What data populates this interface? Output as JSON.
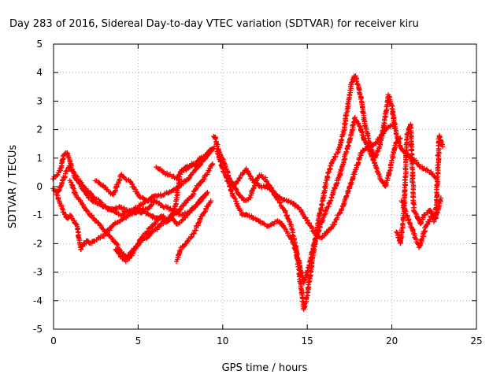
{
  "chart_data": {
    "type": "scatter",
    "title": "Day 283 of 2016, Sidereal Day-to-day VTEC variation (SDTVAR) for receiver kiru",
    "xlabel": "GPS time / hours",
    "ylabel": "SDTVAR / TECUs",
    "xlim": [
      0,
      25
    ],
    "ylim": [
      -5,
      5
    ],
    "xticks": [
      0,
      5,
      10,
      15,
      20,
      25
    ],
    "yticks": [
      -5,
      -4,
      -3,
      -2,
      -1,
      0,
      1,
      2,
      3,
      4,
      5
    ],
    "grid": true,
    "marker": "plus",
    "color": "#ff0000",
    "series": [
      {
        "x": [
          0.0,
          0.2,
          0.4,
          0.6,
          0.8,
          1.0,
          1.2,
          1.5,
          1.8,
          2.0,
          2.3,
          2.6,
          3.0,
          3.3,
          3.7,
          4.0,
          4.3,
          4.7,
          5.0,
          5.3,
          5.7,
          6.0,
          6.4,
          6.8,
          7.2,
          7.6,
          8.0,
          8.4,
          8.8,
          9.2,
          9.5
        ],
        "y": [
          0.3,
          0.4,
          0.6,
          1.1,
          1.2,
          0.8,
          0.4,
          0.1,
          -0.1,
          -0.3,
          -0.5,
          -0.6,
          -0.7,
          -0.8,
          -0.9,
          -1.0,
          -0.9,
          -0.8,
          -0.7,
          -0.6,
          -0.4,
          -0.3,
          -0.3,
          -0.2,
          -0.1,
          0.1,
          0.3,
          0.6,
          0.9,
          1.2,
          1.4
        ]
      },
      {
        "x": [
          0.0,
          0.3,
          0.6,
          0.9,
          1.2,
          1.5,
          1.8,
          2.1,
          2.4,
          2.7,
          3.0,
          3.3,
          3.6,
          3.9,
          4.2,
          4.5,
          4.8,
          5.1,
          5.4,
          5.7,
          6.0,
          6.3,
          6.6,
          6.9,
          7.2,
          7.5,
          7.8,
          8.1,
          8.4,
          8.7,
          9.0,
          9.3
        ],
        "y": [
          -0.1,
          -0.2,
          0.3,
          0.7,
          0.5,
          0.2,
          0.0,
          -0.2,
          -0.4,
          -0.5,
          -0.7,
          -0.8,
          -0.8,
          -0.7,
          -0.8,
          -0.9,
          -0.9,
          -0.9,
          -0.9,
          -1.0,
          -1.1,
          -1.1,
          -1.2,
          -1.1,
          -0.7,
          0.5,
          0.6,
          0.7,
          0.8,
          1.0,
          1.1,
          1.3
        ]
      },
      {
        "x": [
          0.2,
          0.4,
          0.6,
          0.8,
          1.0,
          1.2,
          1.4,
          1.6,
          1.8,
          2.0,
          2.2,
          2.4,
          2.7,
          3.0,
          3.3,
          3.6,
          3.9,
          4.2,
          4.5,
          4.8,
          5.1,
          5.4,
          5.7,
          6.0
        ],
        "y": [
          -0.3,
          -0.6,
          -0.9,
          -1.1,
          -1.0,
          -1.2,
          -1.4,
          -2.2,
          -2.0,
          -1.9,
          -2.0,
          -1.9,
          -1.8,
          -1.7,
          -1.5,
          -1.3,
          -1.2,
          -1.1,
          -1.0,
          -0.9,
          -0.8,
          -0.8,
          -0.7,
          -0.5
        ]
      },
      {
        "x": [
          1.0,
          1.3,
          1.6,
          1.9,
          2.2,
          2.5,
          2.8,
          3.1,
          3.4,
          3.7,
          4.0,
          4.3,
          4.6,
          4.9,
          5.2,
          5.5,
          5.8,
          6.1,
          6.4,
          6.7,
          7.0,
          7.3,
          7.6,
          7.9,
          8.2,
          8.5,
          8.8,
          9.1,
          9.4
        ],
        "y": [
          0.2,
          -0.3,
          -0.5,
          -0.8,
          -1.0,
          -1.2,
          -1.4,
          -1.6,
          -1.8,
          -2.0,
          -2.3,
          -2.5,
          -2.3,
          -2.1,
          -1.9,
          -1.8,
          -1.6,
          -1.5,
          -1.3,
          -1.2,
          -1.0,
          -0.9,
          -0.7,
          -0.5,
          -0.3,
          0.0,
          0.2,
          0.5,
          0.8
        ]
      },
      {
        "x": [
          2.5,
          3.0,
          3.5,
          4.0,
          4.5,
          5.0,
          5.5,
          6.0,
          6.5,
          7.0,
          7.5,
          8.0,
          8.5,
          9.0
        ],
        "y": [
          0.2,
          0.0,
          -0.3,
          0.4,
          0.2,
          -0.3,
          -0.5,
          -0.5,
          -0.7,
          -0.8,
          -1.0,
          -0.9,
          -0.6,
          -0.3
        ]
      },
      {
        "x": [
          3.7,
          4.0,
          4.3,
          4.6,
          4.9,
          5.2,
          5.5,
          5.8,
          6.1,
          6.4,
          6.7,
          7.0,
          7.3,
          7.6,
          7.9,
          8.2,
          8.5,
          8.8,
          9.1
        ],
        "y": [
          -2.2,
          -2.5,
          -2.6,
          -2.4,
          -2.1,
          -1.8,
          -1.6,
          -1.4,
          -1.2,
          -1.0,
          -1.2,
          -1.1,
          -1.3,
          -1.2,
          -1.0,
          -0.8,
          -0.6,
          -0.4,
          -0.2
        ]
      },
      {
        "x": [
          6.1,
          6.5,
          6.9,
          7.3,
          7.6,
          7.9,
          8.2,
          8.5,
          8.8,
          9.1,
          9.4
        ],
        "y": [
          0.7,
          0.5,
          0.4,
          0.3,
          0.6,
          0.7,
          0.8,
          0.7,
          0.9,
          1.1,
          1.3
        ]
      },
      {
        "x": [
          7.3,
          7.5,
          7.8,
          8.1,
          8.4,
          8.7,
          9.0,
          9.3
        ],
        "y": [
          -2.6,
          -2.2,
          -2.0,
          -1.8,
          -1.5,
          -1.1,
          -0.8,
          -0.5
        ]
      },
      {
        "x": [
          9.5,
          9.8,
          10.1,
          10.4,
          10.7,
          11.0,
          11.3,
          11.6,
          11.9,
          12.2,
          12.5,
          12.8,
          13.1,
          13.4,
          13.7,
          14.0,
          14.3,
          14.6,
          14.8,
          15.0,
          15.3,
          15.6,
          15.9,
          16.2,
          16.5,
          16.8,
          17.1,
          17.4,
          17.6,
          17.8,
          18.0,
          18.2,
          18.4,
          18.7,
          19.0,
          19.3,
          19.6,
          19.8,
          20.0,
          20.2,
          20.5,
          20.8,
          21.1,
          21.4,
          21.7,
          22.0,
          22.3,
          22.6
        ],
        "y": [
          1.8,
          1.2,
          0.8,
          0.3,
          0.0,
          -0.3,
          -0.5,
          -0.4,
          0.1,
          0.4,
          0.3,
          0.0,
          -0.3,
          -0.6,
          -0.9,
          -1.3,
          -2.0,
          -3.4,
          -4.3,
          -3.8,
          -2.6,
          -1.4,
          -0.5,
          0.4,
          0.9,
          1.2,
          1.8,
          2.8,
          3.6,
          3.9,
          3.6,
          3.0,
          2.2,
          1.5,
          1.0,
          1.5,
          2.4,
          3.2,
          2.8,
          2.0,
          1.4,
          1.2,
          1.0,
          0.9,
          0.7,
          0.6,
          0.5,
          0.3
        ]
      },
      {
        "x": [
          9.7,
          10.0,
          10.3,
          10.6,
          10.9,
          11.2,
          11.5,
          11.8,
          12.1,
          12.4,
          12.7,
          13.0,
          13.3,
          13.6,
          13.9,
          14.2,
          14.5,
          14.8,
          15.1,
          15.4,
          15.7,
          16.0,
          16.3,
          16.6,
          16.9,
          17.2,
          17.5,
          17.8,
          18.1,
          18.4,
          18.7,
          19.0,
          19.3,
          19.6,
          19.9,
          20.2,
          20.5
        ],
        "y": [
          1.2,
          0.6,
          0.2,
          -0.3,
          -0.7,
          -1.0,
          -1.0,
          -1.1,
          -1.2,
          -1.3,
          -1.4,
          -1.3,
          -1.2,
          -1.4,
          -1.7,
          -2.0,
          -2.6,
          -3.4,
          -2.8,
          -2.0,
          -1.5,
          -1.0,
          -0.6,
          -0.1,
          0.4,
          1.0,
          1.6,
          2.4,
          2.1,
          1.6,
          1.2,
          0.8,
          0.3,
          0.0,
          0.6,
          1.5,
          1.7
        ]
      },
      {
        "x": [
          10.2,
          10.6,
          11.0,
          11.4,
          11.8,
          12.2,
          12.6,
          13.0,
          13.4,
          13.8,
          14.2,
          14.6,
          15.0,
          15.4,
          15.8,
          16.2,
          16.6,
          17.0,
          17.4,
          17.8,
          18.2,
          18.6,
          19.0,
          19.4,
          19.8,
          20.2
        ],
        "y": [
          0.4,
          0.0,
          0.3,
          0.6,
          0.2,
          0.0,
          0.0,
          -0.2,
          -0.4,
          -0.5,
          -0.6,
          -0.8,
          -1.2,
          -1.6,
          -1.8,
          -1.6,
          -1.3,
          -0.8,
          -0.2,
          0.5,
          1.2,
          1.4,
          1.5,
          1.8,
          2.1,
          2.2
        ]
      },
      {
        "x": [
          20.3,
          20.5,
          20.7,
          20.9,
          21.1,
          21.3,
          21.5,
          21.7,
          21.9,
          22.1,
          22.3,
          22.5,
          22.7,
          22.9
        ],
        "y": [
          -1.6,
          -2.0,
          -1.0,
          1.8,
          2.2,
          -0.8,
          -1.1,
          -1.3,
          -1.0,
          -0.9,
          -0.8,
          -1.2,
          -0.9,
          -0.4
        ]
      },
      {
        "x": [
          20.6,
          20.8,
          21.0,
          21.2,
          21.4,
          21.6,
          21.8,
          22.0,
          22.2,
          22.4,
          22.6,
          22.8,
          23.0
        ],
        "y": [
          -0.5,
          -0.9,
          -1.2,
          -1.5,
          -1.8,
          -2.1,
          -1.8,
          -1.4,
          -1.2,
          -1.0,
          -1.1,
          1.8,
          1.4
        ]
      }
    ]
  }
}
